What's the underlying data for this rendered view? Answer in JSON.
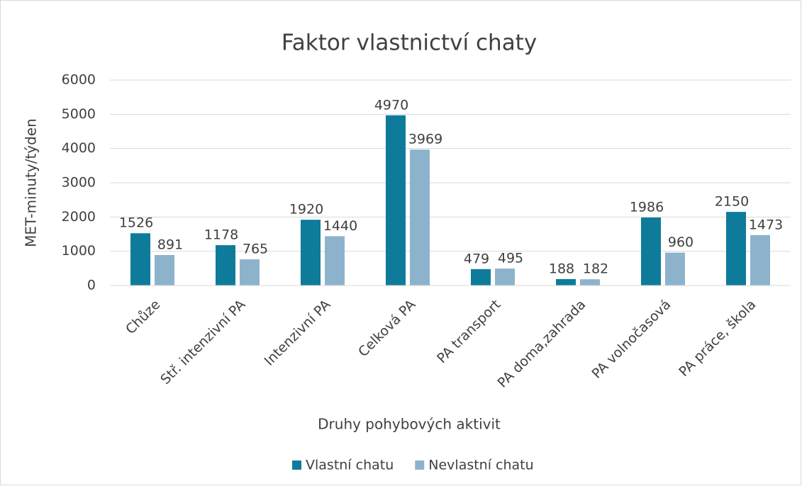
{
  "chart_data": {
    "type": "bar",
    "title": "Faktor vlastnictví chaty",
    "y_label": "MET-minuty/týden",
    "x_label": "Druhy pohybových aktivit",
    "categories": [
      "Chůze",
      "Stř. intenzivní PA",
      "Intenzivní PA",
      "Celková PA",
      "PA transport",
      "PA doma,zahrada",
      "PA volnočasová",
      "PA práce, škola"
    ],
    "series": [
      {
        "name": "Vlastní chatu",
        "color": "#0f7b9b",
        "values": [
          1526,
          1178,
          1920,
          4970,
          479,
          188,
          1986,
          2150
        ]
      },
      {
        "name": "Nevlastní chatu",
        "color": "#8db3cc",
        "values": [
          891,
          765,
          1440,
          3969,
          495,
          182,
          960,
          1473
        ]
      }
    ],
    "ylim": [
      0,
      6000
    ],
    "yticks": [
      0,
      1000,
      2000,
      3000,
      4000,
      5000,
      6000
    ],
    "grid": true,
    "legend": "bottom"
  }
}
